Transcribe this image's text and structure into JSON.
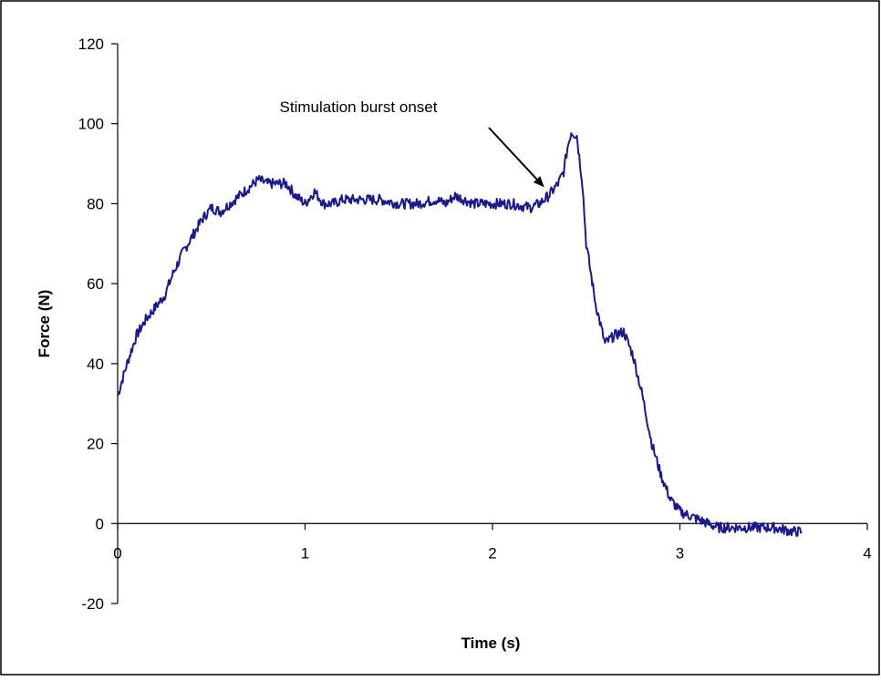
{
  "chart_data": {
    "type": "line",
    "title": "",
    "xlabel": "Time (s)",
    "ylabel": "Force (N)",
    "xlim": [
      0,
      4
    ],
    "ylim": [
      -20,
      120
    ],
    "x_ticks": [
      0,
      1,
      2,
      3,
      4
    ],
    "y_ticks": [
      -20,
      0,
      20,
      40,
      60,
      80,
      100,
      120
    ],
    "x_tick_labels": [
      "0",
      "1",
      "2",
      "3",
      "4"
    ],
    "y_tick_labels": [
      "-20",
      "0",
      "20",
      "40",
      "60",
      "80",
      "100",
      "120"
    ],
    "grid": false,
    "legend": "none",
    "line_color": "#1a1a8c",
    "series": [
      {
        "name": "",
        "x": [
          0,
          0.05,
          0.1,
          0.15,
          0.2,
          0.25,
          0.3,
          0.35,
          0.4,
          0.45,
          0.5,
          0.55,
          0.6,
          0.65,
          0.7,
          0.75,
          0.8,
          0.85,
          0.9,
          0.95,
          1.0,
          1.05,
          1.1,
          1.15,
          1.2,
          1.3,
          1.4,
          1.5,
          1.6,
          1.7,
          1.75,
          1.8,
          1.9,
          2.0,
          2.1,
          2.2,
          2.25,
          2.3,
          2.35,
          2.38,
          2.4,
          2.42,
          2.45,
          2.48,
          2.5,
          2.55,
          2.6,
          2.65,
          2.7,
          2.75,
          2.8,
          2.85,
          2.9,
          2.95,
          3.0,
          3.05,
          3.1,
          3.15,
          3.2,
          3.3,
          3.4,
          3.5,
          3.6,
          3.65
        ],
        "y": [
          32,
          40,
          47,
          51,
          54,
          57,
          63,
          68,
          72,
          76,
          79,
          78,
          80,
          82,
          84,
          86,
          85,
          85,
          85,
          82,
          80,
          83,
          80,
          80,
          81,
          81,
          81,
          80,
          80,
          81,
          80,
          82,
          80,
          80,
          80,
          79,
          80,
          82,
          85,
          88,
          94,
          98,
          97,
          85,
          70,
          55,
          45,
          47,
          48,
          42,
          32,
          20,
          12,
          6,
          3,
          2,
          1,
          0,
          -1,
          -1,
          -1,
          -1,
          -2,
          -2
        ]
      }
    ],
    "annotations": [
      {
        "text": "Stimulation burst onset",
        "arrow_to": {
          "x": 2.25,
          "y": 84
        }
      }
    ]
  }
}
